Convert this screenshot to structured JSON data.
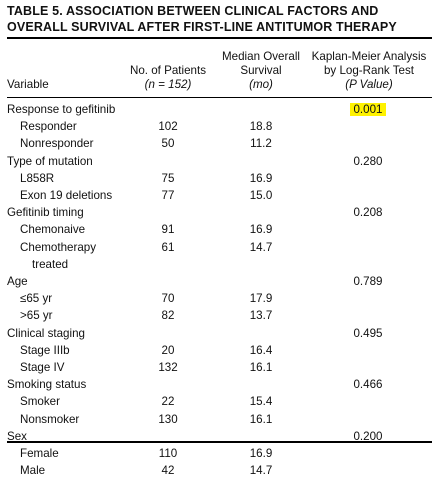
{
  "table": {
    "title_line1": "TABLE 5. ASSOCIATION BETWEEN CLINICAL FACTORS AND",
    "title_line2": "OVERALL SURVIVAL AFTER FIRST-LINE ANTITUMOR THERAPY",
    "headers": {
      "variable": "Variable",
      "patients_line1": "No. of Patients",
      "patients_line2": "(n = 152)",
      "survival_line1": "Median Overall",
      "survival_line2": "Survival",
      "survival_line3": "(mo)",
      "km_line1": "Kaplan-Meier Analysis",
      "km_line2": "by Log-Rank Test",
      "km_line3": "(P Value)"
    },
    "rows": [
      {
        "label": "Response to gefitinib",
        "type": "group",
        "p": "0.001",
        "highlight": true
      },
      {
        "label": "Responder",
        "type": "sub",
        "n": "102",
        "surv": "18.8"
      },
      {
        "label": "Nonresponder",
        "type": "sub",
        "n": "50",
        "surv": "11.2"
      },
      {
        "label": "Type of mutation",
        "type": "group",
        "p": "0.280"
      },
      {
        "label": "L858R",
        "type": "sub",
        "n": "75",
        "surv": "16.9"
      },
      {
        "label": "Exon 19 deletions",
        "type": "sub",
        "n": "77",
        "surv": "15.0"
      },
      {
        "label": "Gefitinib timing",
        "type": "group",
        "p": "0.208"
      },
      {
        "label": "Chemonaive",
        "type": "sub",
        "n": "91",
        "surv": "16.9"
      },
      {
        "label": "Chemotherapy",
        "type": "sub",
        "n": "61",
        "surv": "14.7",
        "cont": "treated"
      },
      {
        "label": "Age",
        "type": "group",
        "p": "0.789"
      },
      {
        "label": "≤65 yr",
        "type": "sub",
        "n": "70",
        "surv": "17.9"
      },
      {
        "label": ">65 yr",
        "type": "sub",
        "n": "82",
        "surv": "13.7"
      },
      {
        "label": "Clinical staging",
        "type": "group",
        "p": "0.495"
      },
      {
        "label": "Stage IIIb",
        "type": "sub",
        "n": "20",
        "surv": "16.4"
      },
      {
        "label": "Stage IV",
        "type": "sub",
        "n": "132",
        "surv": "16.1"
      },
      {
        "label": "Smoking status",
        "type": "group",
        "p": "0.466"
      },
      {
        "label": "Smoker",
        "type": "sub",
        "n": "22",
        "surv": "15.4"
      },
      {
        "label": "Nonsmoker",
        "type": "sub",
        "n": "130",
        "surv": "16.1"
      },
      {
        "label": "Sex",
        "type": "group",
        "p": "0.200"
      },
      {
        "label": "Female",
        "type": "sub",
        "n": "110",
        "surv": "16.9"
      },
      {
        "label": "Male",
        "type": "sub",
        "n": "42",
        "surv": "14.7"
      }
    ],
    "highlight_color": "#fff200"
  }
}
